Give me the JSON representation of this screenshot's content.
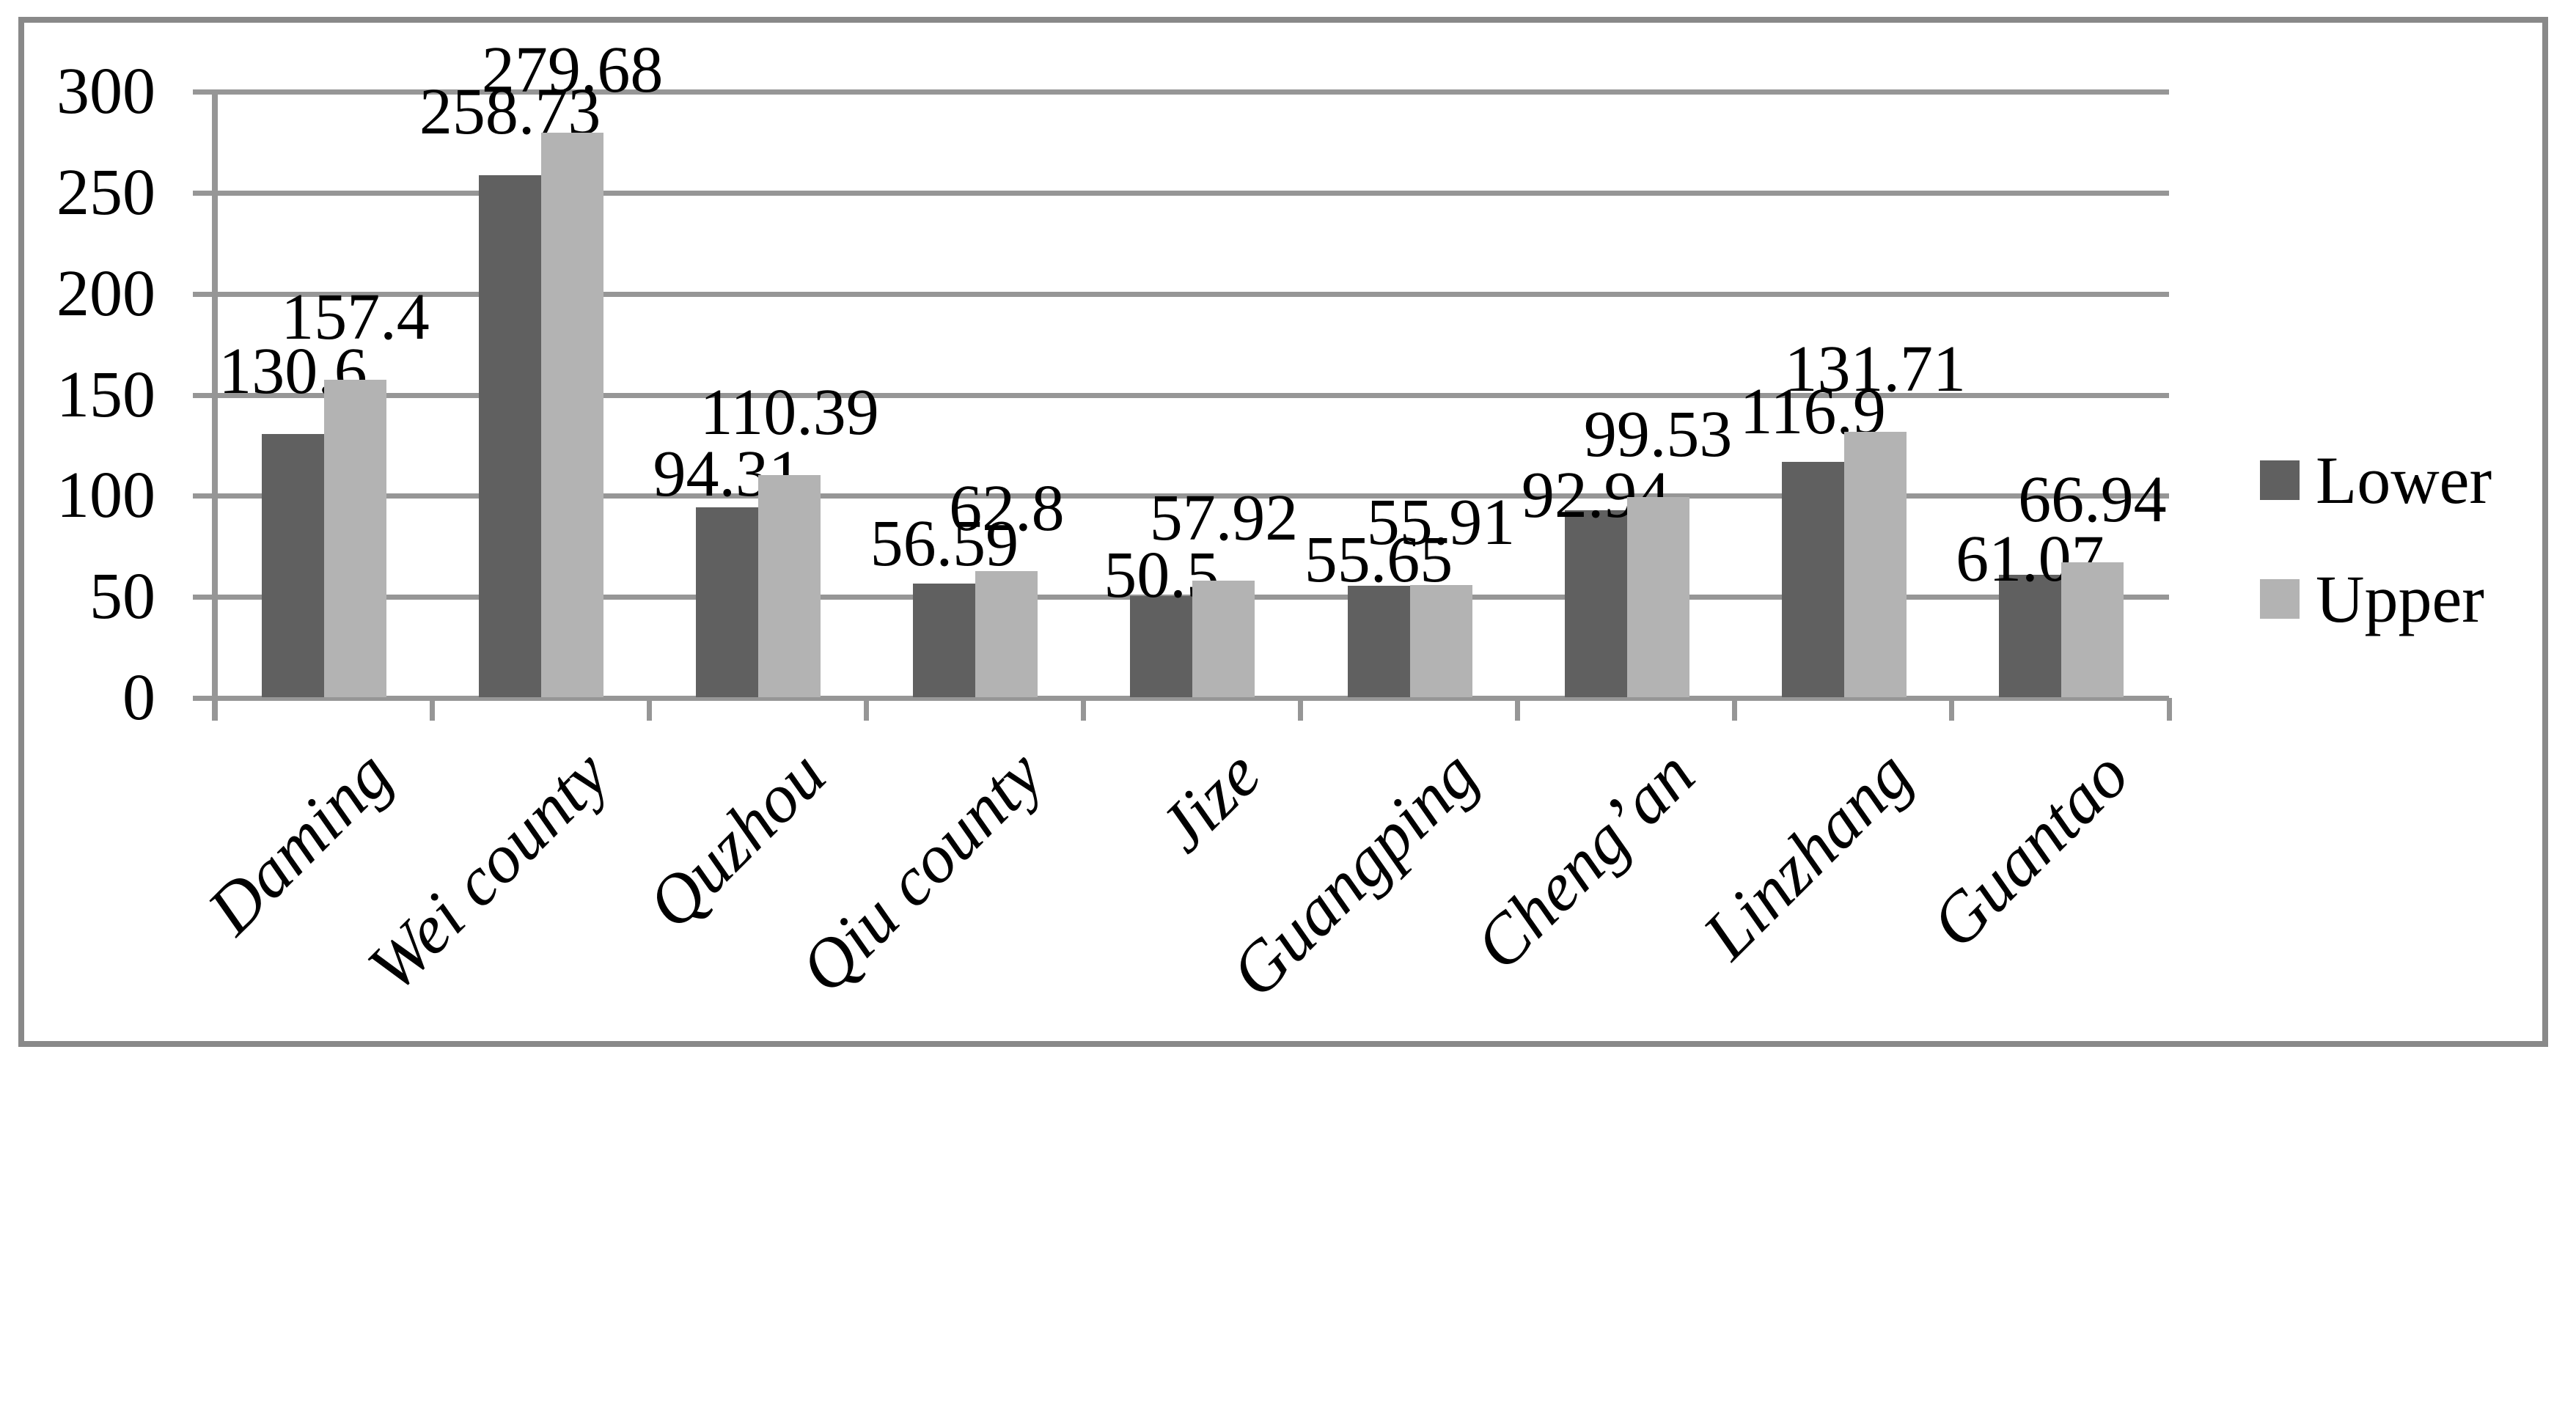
{
  "chart_data": {
    "type": "bar",
    "title": "",
    "xlabel": "",
    "ylabel": "",
    "categories": [
      "Daming",
      "Wei county",
      "Quzhou",
      "Qiu county",
      "Jize",
      "Guangping",
      "Cheng’an",
      "Linzhang",
      "Guantao"
    ],
    "series": [
      {
        "name": "Lower",
        "color": "#606060",
        "values": [
          130.6,
          258.73,
          94.31,
          56.59,
          50.5,
          55.65,
          92.94,
          116.9,
          61.07
        ]
      },
      {
        "name": "Upper",
        "color": "#b3b3b3",
        "values": [
          157.4,
          279.68,
          110.39,
          62.8,
          57.92,
          55.91,
          99.53,
          131.71,
          66.94
        ]
      }
    ],
    "value_labels": [
      "130.6",
      "258.73",
      "94.31",
      "56.59",
      "50.5",
      "55.65",
      "92.94",
      "116.9",
      "61.07",
      "157.4",
      "279.68",
      "110.39",
      "62.8",
      "57.92",
      "55.91",
      "99.53",
      "131.71",
      "66.94"
    ],
    "ylim": [
      0,
      300
    ],
    "yticks": [
      0,
      50,
      100,
      150,
      200,
      250,
      300
    ],
    "grid": true,
    "legend_position": "right"
  },
  "colors": {
    "background": "#ffffff",
    "border": "#898989",
    "gridline": "#969696",
    "bar_lower": "#606060",
    "bar_upper": "#b3b3b3",
    "text": "#000000"
  }
}
